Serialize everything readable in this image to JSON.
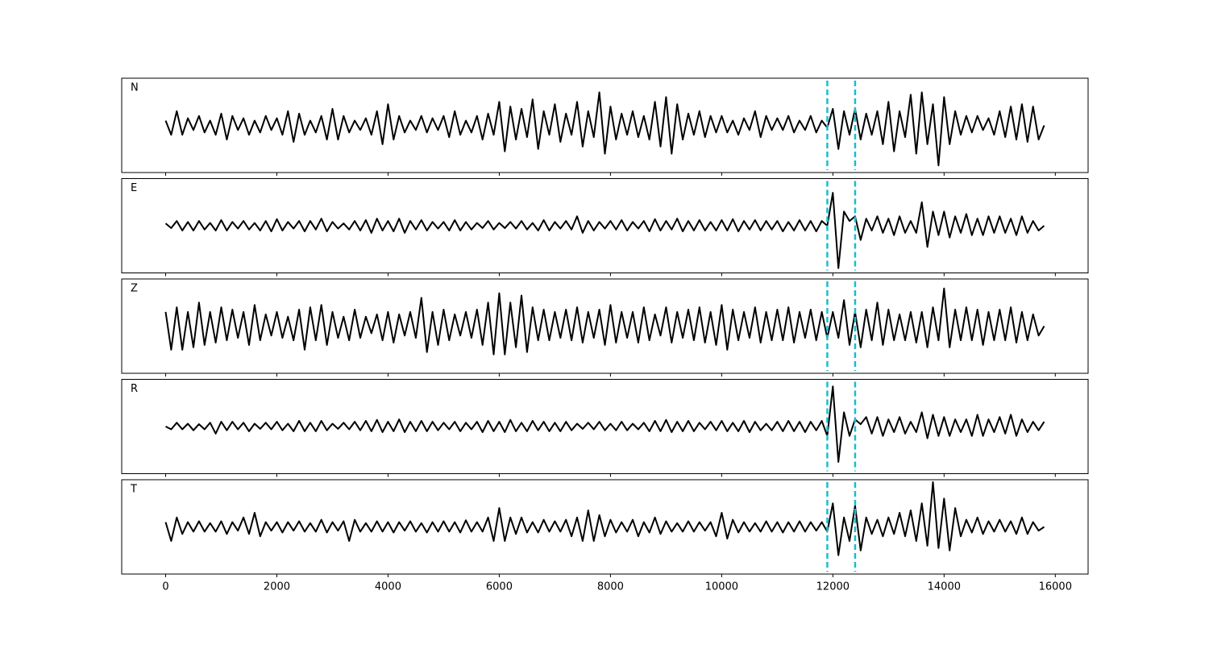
{
  "chart_data": {
    "type": "line",
    "layout": "stacked",
    "x": [
      0,
      100,
      200,
      300,
      400,
      500,
      600,
      700,
      800,
      900,
      1000,
      1100,
      1200,
      1300,
      1400,
      1500,
      1600,
      1700,
      1800,
      1900,
      2000,
      2100,
      2200,
      2300,
      2400,
      2500,
      2600,
      2700,
      2800,
      2900,
      3000,
      3100,
      3200,
      3300,
      3400,
      3500,
      3600,
      3700,
      3800,
      3900,
      4000,
      4100,
      4200,
      4300,
      4400,
      4500,
      4600,
      4700,
      4800,
      4900,
      5000,
      5100,
      5200,
      5300,
      5400,
      5500,
      5600,
      5700,
      5800,
      5900,
      6000,
      6100,
      6200,
      6300,
      6400,
      6500,
      6600,
      6700,
      6800,
      6900,
      7000,
      7100,
      7200,
      7300,
      7400,
      7500,
      7600,
      7700,
      7800,
      7900,
      8000,
      8100,
      8200,
      8300,
      8400,
      8500,
      8600,
      8700,
      8800,
      8900,
      9000,
      9100,
      9200,
      9300,
      9400,
      9500,
      9600,
      9700,
      9800,
      9900,
      10000,
      10100,
      10200,
      10300,
      10400,
      10500,
      10600,
      10700,
      10800,
      10900,
      11000,
      11100,
      11200,
      11300,
      11400,
      11500,
      11600,
      11700,
      11800,
      11900,
      12000,
      12100,
      12200,
      12300,
      12400,
      12500,
      12600,
      12700,
      12800,
      12900,
      13000,
      13100,
      13200,
      13300,
      13400,
      13500,
      13600,
      13700,
      13800,
      13900,
      14000,
      14100,
      14200,
      14300,
      14400,
      14500,
      14600,
      14700,
      14800,
      14900,
      15000,
      15100,
      15200,
      15300,
      15400,
      15500,
      15600,
      15700,
      15800
    ],
    "series": [
      {
        "name": "N",
        "color": "#000000",
        "values": [
          0.1,
          -0.2,
          0.3,
          -0.2,
          0.15,
          -0.1,
          0.2,
          -0.15,
          0.1,
          -0.2,
          0.25,
          -0.3,
          0.2,
          -0.1,
          0.15,
          -0.2,
          0.1,
          -0.15,
          0.2,
          -0.1,
          0.15,
          -0.2,
          0.3,
          -0.35,
          0.25,
          -0.2,
          0.1,
          -0.15,
          0.2,
          -0.3,
          0.35,
          -0.3,
          0.2,
          -0.15,
          0.1,
          -0.1,
          0.15,
          -0.2,
          0.3,
          -0.4,
          0.45,
          -0.3,
          0.2,
          -0.15,
          0.1,
          -0.1,
          0.2,
          -0.15,
          0.15,
          -0.1,
          0.2,
          -0.25,
          0.3,
          -0.2,
          0.1,
          -0.15,
          0.2,
          -0.3,
          0.25,
          -0.2,
          0.5,
          -0.55,
          0.4,
          -0.3,
          0.35,
          -0.25,
          0.55,
          -0.5,
          0.3,
          -0.2,
          0.45,
          -0.35,
          0.25,
          -0.2,
          0.5,
          -0.45,
          0.3,
          -0.25,
          0.7,
          -0.6,
          0.4,
          -0.3,
          0.25,
          -0.2,
          0.3,
          -0.25,
          0.2,
          -0.3,
          0.5,
          -0.45,
          0.6,
          -0.6,
          0.45,
          -0.3,
          0.25,
          -0.2,
          0.3,
          -0.25,
          0.2,
          -0.15,
          0.2,
          -0.15,
          0.1,
          -0.2,
          0.15,
          -0.1,
          0.3,
          -0.25,
          0.2,
          -0.1,
          0.15,
          -0.1,
          0.2,
          -0.15,
          0.1,
          -0.1,
          0.2,
          -0.15,
          0.1,
          -0.05,
          0.35,
          -0.5,
          0.3,
          -0.2,
          0.35,
          -0.3,
          0.25,
          -0.2,
          0.3,
          -0.4,
          0.5,
          -0.55,
          0.3,
          -0.25,
          0.65,
          -0.6,
          0.7,
          -0.4,
          0.45,
          -0.85,
          0.6,
          -0.4,
          0.3,
          -0.2,
          0.2,
          -0.15,
          0.2,
          -0.1,
          0.15,
          -0.2,
          0.3,
          -0.25,
          0.4,
          -0.3,
          0.45,
          -0.35,
          0.4,
          -0.3,
          0.0
        ]
      },
      {
        "name": "E",
        "color": "#000000",
        "values": [
          0.05,
          -0.05,
          0.1,
          -0.1,
          0.08,
          -0.1,
          0.1,
          -0.08,
          0.06,
          -0.1,
          0.12,
          -0.1,
          0.08,
          -0.06,
          0.1,
          -0.08,
          0.06,
          -0.1,
          0.1,
          -0.12,
          0.14,
          -0.1,
          0.08,
          -0.06,
          0.1,
          -0.12,
          0.1,
          -0.08,
          0.15,
          -0.12,
          0.08,
          -0.06,
          0.05,
          -0.08,
          0.1,
          -0.1,
          0.12,
          -0.15,
          0.15,
          -0.1,
          0.1,
          -0.12,
          0.15,
          -0.15,
          0.1,
          -0.08,
          0.12,
          -0.1,
          0.08,
          -0.06,
          0.08,
          -0.1,
          0.12,
          -0.1,
          0.08,
          -0.08,
          0.06,
          -0.05,
          0.1,
          -0.08,
          0.06,
          -0.05,
          0.08,
          -0.06,
          0.1,
          -0.08,
          0.06,
          -0.1,
          0.12,
          -0.1,
          0.08,
          -0.06,
          0.1,
          -0.08,
          0.2,
          -0.15,
          0.1,
          -0.1,
          0.08,
          -0.06,
          0.1,
          -0.08,
          0.12,
          -0.1,
          0.08,
          -0.06,
          0.1,
          -0.12,
          0.14,
          -0.1,
          0.1,
          -0.08,
          0.15,
          -0.12,
          0.1,
          -0.1,
          0.12,
          -0.1,
          0.08,
          -0.1,
          0.12,
          -0.1,
          0.14,
          -0.12,
          0.1,
          -0.08,
          0.12,
          -0.1,
          0.1,
          -0.08,
          0.1,
          -0.12,
          0.08,
          -0.1,
          0.12,
          -0.1,
          0.1,
          -0.12,
          0.1,
          0.0,
          0.7,
          -0.9,
          0.3,
          0.1,
          0.2,
          -0.3,
          0.15,
          -0.1,
          0.2,
          -0.15,
          0.15,
          -0.2,
          0.2,
          -0.15,
          0.1,
          -0.15,
          0.5,
          -0.45,
          0.3,
          -0.2,
          0.3,
          -0.25,
          0.2,
          -0.15,
          0.25,
          -0.2,
          0.15,
          -0.2,
          0.2,
          -0.15,
          0.2,
          -0.15,
          0.15,
          -0.2,
          0.2,
          -0.15,
          0.1,
          -0.1,
          0.0
        ]
      },
      {
        "name": "Z",
        "color": "#000000",
        "values": [
          0.3,
          -0.5,
          0.4,
          -0.5,
          0.3,
          -0.45,
          0.5,
          -0.4,
          0.3,
          -0.35,
          0.4,
          -0.3,
          0.35,
          -0.25,
          0.3,
          -0.4,
          0.45,
          -0.3,
          0.25,
          -0.2,
          0.3,
          -0.25,
          0.2,
          -0.3,
          0.35,
          -0.5,
          0.4,
          -0.3,
          0.45,
          -0.4,
          0.3,
          -0.25,
          0.2,
          -0.3,
          0.35,
          -0.25,
          0.2,
          -0.15,
          0.25,
          -0.3,
          0.3,
          -0.35,
          0.25,
          -0.2,
          0.3,
          -0.25,
          0.6,
          -0.55,
          0.3,
          -0.4,
          0.35,
          -0.3,
          0.25,
          -0.2,
          0.3,
          -0.25,
          0.35,
          -0.4,
          0.5,
          -0.6,
          0.7,
          -0.6,
          0.5,
          -0.45,
          0.65,
          -0.55,
          0.4,
          -0.3,
          0.35,
          -0.3,
          0.3,
          -0.25,
          0.35,
          -0.3,
          0.4,
          -0.35,
          0.3,
          -0.25,
          0.35,
          -0.4,
          0.45,
          -0.35,
          0.3,
          -0.25,
          0.3,
          -0.35,
          0.4,
          -0.3,
          0.25,
          -0.2,
          0.4,
          -0.35,
          0.3,
          -0.25,
          0.35,
          -0.3,
          0.4,
          -0.35,
          0.3,
          -0.4,
          0.45,
          -0.5,
          0.35,
          -0.3,
          0.3,
          -0.25,
          0.4,
          -0.35,
          0.3,
          -0.3,
          0.35,
          -0.3,
          0.4,
          -0.35,
          0.3,
          -0.25,
          0.35,
          -0.3,
          0.3,
          -0.25,
          0.3,
          -0.25,
          0.55,
          -0.4,
          0.3,
          -0.45,
          0.35,
          -0.3,
          0.5,
          -0.4,
          0.35,
          -0.3,
          0.25,
          -0.3,
          0.3,
          -0.35,
          0.3,
          -0.45,
          0.4,
          -0.3,
          0.8,
          -0.45,
          0.35,
          -0.3,
          0.4,
          -0.3,
          0.35,
          -0.4,
          0.3,
          -0.3,
          0.35,
          -0.3,
          0.4,
          -0.35,
          0.3,
          -0.3,
          0.25,
          -0.2,
          0.0
        ]
      },
      {
        "name": "R",
        "color": "#000000",
        "values": [
          0.0,
          -0.06,
          0.08,
          -0.06,
          0.06,
          -0.08,
          0.05,
          -0.06,
          0.08,
          -0.15,
          0.1,
          -0.08,
          0.1,
          -0.06,
          0.08,
          -0.1,
          0.06,
          -0.05,
          0.08,
          -0.06,
          0.1,
          -0.08,
          0.06,
          -0.1,
          0.12,
          -0.1,
          0.08,
          -0.1,
          0.12,
          -0.08,
          0.06,
          -0.05,
          0.08,
          -0.06,
          0.1,
          -0.08,
          0.12,
          -0.1,
          0.14,
          -0.12,
          0.1,
          -0.1,
          0.15,
          -0.12,
          0.1,
          -0.1,
          0.12,
          -0.1,
          0.1,
          -0.08,
          0.08,
          -0.06,
          0.1,
          -0.1,
          0.08,
          -0.06,
          0.1,
          -0.12,
          0.12,
          -0.1,
          0.1,
          -0.12,
          0.14,
          -0.1,
          0.08,
          -0.1,
          0.12,
          -0.08,
          0.1,
          -0.1,
          0.08,
          -0.1,
          0.1,
          -0.08,
          0.06,
          -0.05,
          0.08,
          -0.06,
          0.1,
          -0.08,
          0.06,
          -0.08,
          0.1,
          -0.08,
          0.06,
          -0.06,
          0.08,
          -0.1,
          0.12,
          -0.1,
          0.14,
          -0.12,
          0.1,
          -0.1,
          0.12,
          -0.1,
          0.08,
          -0.06,
          0.1,
          -0.08,
          0.12,
          -0.1,
          0.08,
          -0.1,
          0.12,
          -0.12,
          0.1,
          -0.08,
          0.06,
          -0.08,
          0.1,
          -0.1,
          0.12,
          -0.1,
          0.1,
          -0.12,
          0.1,
          -0.08,
          0.12,
          -0.2,
          0.85,
          -0.75,
          0.3,
          -0.2,
          0.15,
          0.05,
          0.2,
          -0.15,
          0.2,
          -0.2,
          0.15,
          -0.12,
          0.2,
          -0.15,
          0.1,
          -0.12,
          0.3,
          -0.25,
          0.25,
          -0.2,
          0.2,
          -0.2,
          0.15,
          -0.12,
          0.15,
          -0.2,
          0.25,
          -0.2,
          0.15,
          -0.12,
          0.2,
          -0.15,
          0.25,
          -0.2,
          0.15,
          -0.12,
          0.1,
          -0.08,
          0.1
        ]
      },
      {
        "name": "T",
        "color": "#000000",
        "values": [
          0.1,
          -0.3,
          0.2,
          -0.15,
          0.1,
          -0.1,
          0.12,
          -0.1,
          0.08,
          -0.1,
          0.12,
          -0.15,
          0.1,
          -0.08,
          0.2,
          -0.15,
          0.3,
          -0.2,
          0.1,
          -0.08,
          0.1,
          -0.12,
          0.1,
          -0.08,
          0.12,
          -0.1,
          0.08,
          -0.1,
          0.15,
          -0.12,
          0.1,
          -0.08,
          0.12,
          -0.3,
          0.15,
          -0.1,
          0.08,
          -0.1,
          0.12,
          -0.1,
          0.1,
          -0.12,
          0.1,
          -0.08,
          0.12,
          -0.1,
          0.08,
          -0.12,
          0.1,
          -0.1,
          0.12,
          -0.1,
          0.1,
          -0.12,
          0.14,
          -0.1,
          0.1,
          -0.1,
          0.2,
          -0.3,
          0.4,
          -0.3,
          0.2,
          -0.15,
          0.2,
          -0.12,
          0.1,
          -0.12,
          0.15,
          -0.1,
          0.12,
          -0.1,
          0.15,
          -0.2,
          0.2,
          -0.3,
          0.35,
          -0.3,
          0.25,
          -0.2,
          0.15,
          -0.12,
          0.1,
          -0.1,
          0.15,
          -0.2,
          0.1,
          -0.12,
          0.2,
          -0.15,
          0.12,
          -0.1,
          0.08,
          -0.1,
          0.12,
          -0.1,
          0.1,
          -0.08,
          0.1,
          -0.2,
          0.3,
          -0.25,
          0.15,
          -0.12,
          0.1,
          -0.1,
          0.08,
          -0.1,
          0.12,
          -0.1,
          0.1,
          -0.12,
          0.1,
          -0.1,
          0.12,
          -0.1,
          0.1,
          -0.08,
          0.1,
          -0.1,
          0.5,
          -0.6,
          0.2,
          -0.3,
          0.45,
          -0.5,
          0.2,
          -0.15,
          0.15,
          -0.2,
          0.2,
          -0.15,
          0.3,
          -0.2,
          0.35,
          -0.3,
          0.5,
          -0.4,
          0.95,
          -0.45,
          0.6,
          -0.5,
          0.4,
          -0.2,
          0.15,
          -0.12,
          0.2,
          -0.15,
          0.12,
          -0.1,
          0.15,
          -0.1,
          0.12,
          -0.15,
          0.2,
          -0.15,
          0.1,
          -0.08,
          0.0
        ]
      }
    ],
    "vlines": [
      11900,
      12400
    ],
    "vline_color": "#17becf",
    "xlim": [
      -790,
      16590
    ],
    "ylim": [
      -1,
      1
    ],
    "xticks": [
      0,
      2000,
      4000,
      6000,
      8000,
      10000,
      12000,
      14000,
      16000
    ]
  }
}
